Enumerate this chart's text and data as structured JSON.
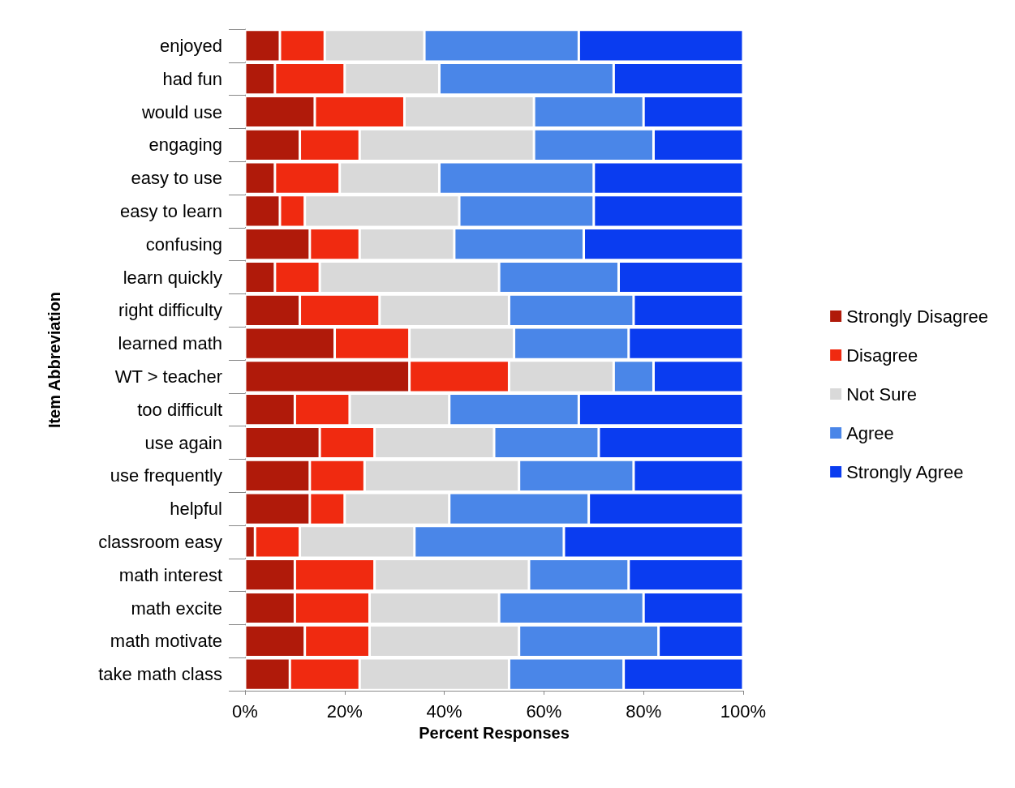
{
  "chart_data": {
    "type": "bar",
    "orientation": "horizontal",
    "stacked": true,
    "xlabel": "Percent Responses",
    "ylabel": "Item Abbreviation",
    "categories": [
      "enjoyed",
      "had fun",
      "would use",
      "engaging",
      "easy to use",
      "easy to learn",
      "confusing",
      "learn quickly",
      "right difficulty",
      "learned math",
      "WT > teacher",
      "too difficult",
      "use again",
      "use frequently",
      "helpful",
      "classroom easy",
      "math interest",
      "math excite",
      "math motivate",
      "take math class"
    ],
    "series": [
      {
        "name": "Strongly Disagree",
        "color": "#b01a0a",
        "values": [
          7,
          6,
          14,
          11,
          6,
          7,
          13,
          6,
          11,
          18,
          33,
          10,
          15,
          13,
          13,
          2,
          10,
          10,
          12,
          9
        ]
      },
      {
        "name": "Disagree",
        "color": "#f02a10",
        "values": [
          9,
          14,
          18,
          12,
          13,
          5,
          10,
          9,
          16,
          15,
          20,
          11,
          11,
          11,
          7,
          9,
          16,
          15,
          13,
          14
        ]
      },
      {
        "name": "Not Sure",
        "color": "#d9d9d9",
        "values": [
          20,
          19,
          26,
          35,
          20,
          31,
          19,
          36,
          26,
          21,
          21,
          20,
          24,
          31,
          21,
          23,
          31,
          26,
          30,
          30
        ]
      },
      {
        "name": "Agree",
        "color": "#4a86e8",
        "values": [
          31,
          35,
          22,
          24,
          31,
          27,
          26,
          24,
          25,
          23,
          8,
          26,
          21,
          23,
          28,
          30,
          20,
          29,
          28,
          23
        ]
      },
      {
        "name": "Strongly Agree",
        "color": "#0a3cf0",
        "values": [
          33,
          26,
          20,
          18,
          30,
          30,
          32,
          25,
          22,
          23,
          18,
          33,
          29,
          22,
          31,
          36,
          23,
          20,
          17,
          24
        ]
      }
    ],
    "xlim": [
      0,
      100
    ],
    "xticks": [
      {
        "value": 0,
        "label": "0%"
      },
      {
        "value": 20,
        "label": "20%"
      },
      {
        "value": 40,
        "label": "40%"
      },
      {
        "value": 60,
        "label": "60%"
      },
      {
        "value": 80,
        "label": "80%"
      },
      {
        "value": 100,
        "label": "100%"
      }
    ],
    "grid": false,
    "legend": "right"
  }
}
